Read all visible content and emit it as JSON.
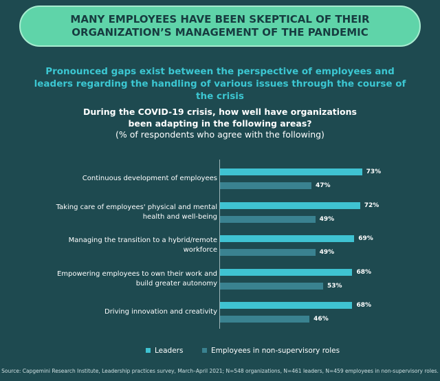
{
  "chart_data": {
    "type": "bar",
    "orientation": "horizontal",
    "title": "MANY EMPLOYEES HAVE BEEN SKEPTICAL OF THEIR ORGANIZATION’S MANAGEMENT OF THE PANDEMIC",
    "subtitle": "Pronounced gaps exist between the perspective of employees and leaders regarding the handling of various issues through the course of the crisis",
    "question": "During the COVID-19 crisis, how well have organizations been adapting in the following areas?",
    "note": "(% of respondents who agree with the following)",
    "categories": [
      "Continuous development of employees",
      "Taking care of employees' physical and mental health and well-being",
      "Managing the transition to a hybrid/remote workforce",
      "Empowering employees to own their work and build greater autonomy",
      "Driving innovation and creativity"
    ],
    "series": [
      {
        "name": "Leaders",
        "color": "#3fc3d2",
        "values": [
          73,
          72,
          69,
          68,
          68
        ],
        "value_labels": [
          "73%",
          "72%",
          "69%",
          "68%",
          "68%"
        ]
      },
      {
        "name": "Employees in non-supervisory roles",
        "color": "#3a8290",
        "values": [
          47,
          49,
          49,
          53,
          46
        ],
        "value_labels": [
          "47%",
          "49%",
          "49%",
          "53%",
          "46%"
        ]
      }
    ],
    "xlim": [
      0,
      100
    ],
    "source": "Source: Capgemini Research Institute, Leadership practices survey, March–April 2021; N=548 organizations, N=461 leaders, N=459 employees in non-supervisory roles."
  }
}
